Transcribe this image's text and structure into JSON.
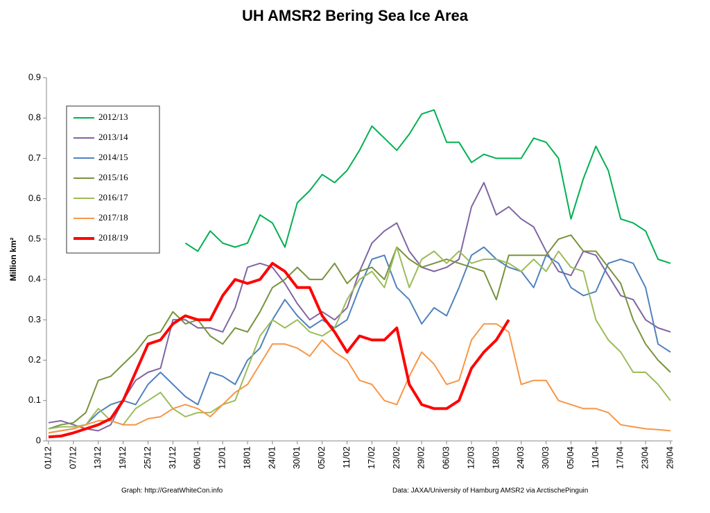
{
  "chart_data": {
    "type": "line",
    "title": "UH AMSR2 Bering Sea Ice Area",
    "y_label": "Million km²",
    "annotations": [
      "Graph: http://GreatWhiteCon.info",
      "Data: JAXA/University of Hamburg AMSR2  via  ArctischePinguin"
    ],
    "ylim": [
      0,
      0.9
    ],
    "yticks": [
      0,
      0.1,
      0.2,
      0.3,
      0.4,
      0.5,
      0.6,
      0.7,
      0.8,
      0.9
    ],
    "grid": false,
    "legend": "upper left",
    "categories": [
      "01/12",
      null,
      "07/12",
      null,
      "13/12",
      null,
      "19/12",
      null,
      "25/12",
      null,
      "31/12",
      null,
      "06/01",
      null,
      "12/01",
      null,
      "18/01",
      null,
      "24/01",
      null,
      "30/01",
      null,
      "05/02",
      null,
      "11/02",
      null,
      "17/02",
      null,
      "23/02",
      null,
      "29/02",
      null,
      "06/03",
      null,
      "12/03",
      null,
      "18/03",
      null,
      "24/03",
      null,
      "30/03",
      null,
      "05/04",
      null,
      "11/04",
      null,
      "17/04",
      null,
      "23/04",
      null,
      "29/04"
    ],
    "series": [
      {
        "name": "2012/13",
        "color": "#00b050",
        "width": 2,
        "values": [
          null,
          null,
          null,
          null,
          null,
          null,
          null,
          null,
          null,
          null,
          null,
          0.49,
          0.47,
          0.52,
          0.49,
          0.48,
          0.49,
          0.56,
          0.54,
          0.48,
          0.59,
          0.62,
          0.66,
          0.64,
          0.67,
          0.72,
          0.78,
          0.75,
          0.72,
          0.76,
          0.81,
          0.82,
          0.74,
          0.74,
          0.69,
          0.71,
          0.7,
          0.7,
          0.7,
          0.75,
          0.74,
          0.7,
          0.55,
          0.65,
          0.73,
          0.67,
          0.55,
          0.54,
          0.52,
          0.45,
          0.44
        ]
      },
      {
        "name": "2013/14",
        "color": "#8064a2",
        "width": 2,
        "values": [
          0.045,
          0.05,
          0.04,
          0.03,
          0.025,
          0.04,
          0.1,
          0.15,
          0.17,
          0.18,
          0.3,
          0.3,
          0.28,
          0.28,
          0.27,
          0.33,
          0.43,
          0.44,
          0.43,
          0.39,
          0.34,
          0.3,
          0.32,
          0.3,
          0.33,
          0.42,
          0.49,
          0.52,
          0.54,
          0.47,
          0.43,
          0.42,
          0.43,
          0.45,
          0.58,
          0.64,
          0.56,
          0.58,
          0.55,
          0.53,
          0.47,
          0.42,
          0.41,
          0.47,
          0.46,
          0.41,
          0.36,
          0.35,
          0.3,
          0.28,
          0.27
        ]
      },
      {
        "name": "2014/15",
        "color": "#4f81bd",
        "width": 2,
        "values": [
          0.02,
          0.025,
          0.03,
          0.04,
          0.07,
          0.09,
          0.1,
          0.09,
          0.14,
          0.17,
          0.14,
          0.11,
          0.09,
          0.17,
          0.16,
          0.14,
          0.2,
          0.23,
          0.3,
          0.35,
          0.31,
          0.28,
          0.3,
          0.28,
          0.3,
          0.38,
          0.45,
          0.46,
          0.38,
          0.35,
          0.29,
          0.33,
          0.31,
          0.38,
          0.46,
          0.48,
          0.45,
          0.43,
          0.42,
          0.38,
          0.46,
          0.44,
          0.38,
          0.36,
          0.37,
          0.44,
          0.45,
          0.44,
          0.38,
          0.24,
          0.22
        ]
      },
      {
        "name": "2015/16",
        "color": "#77933c",
        "width": 2,
        "values": [
          0.03,
          0.04,
          0.045,
          0.07,
          0.15,
          0.16,
          0.19,
          0.22,
          0.26,
          0.27,
          0.32,
          0.29,
          0.3,
          0.26,
          0.24,
          0.28,
          0.27,
          0.32,
          0.38,
          0.4,
          0.43,
          0.4,
          0.4,
          0.44,
          0.39,
          0.42,
          0.43,
          0.4,
          0.48,
          0.45,
          0.43,
          0.44,
          0.45,
          0.44,
          0.43,
          0.42,
          0.35,
          0.46,
          0.46,
          0.46,
          0.46,
          0.5,
          0.51,
          0.47,
          0.47,
          0.43,
          0.39,
          0.3,
          0.24,
          0.2,
          0.17
        ]
      },
      {
        "name": "2016/17",
        "color": "#9bbb59",
        "width": 2,
        "values": [
          0.03,
          0.035,
          0.035,
          0.04,
          0.08,
          0.05,
          0.04,
          0.08,
          0.1,
          0.12,
          0.08,
          0.06,
          0.07,
          0.07,
          0.09,
          0.1,
          0.18,
          0.26,
          0.3,
          0.28,
          0.3,
          0.27,
          0.26,
          0.28,
          0.35,
          0.4,
          0.42,
          0.38,
          0.48,
          0.38,
          0.45,
          0.47,
          0.44,
          0.47,
          0.44,
          0.45,
          0.45,
          0.44,
          0.42,
          0.45,
          0.42,
          0.47,
          0.43,
          0.42,
          0.3,
          0.25,
          0.22,
          0.17,
          0.17,
          0.14,
          0.1
        ]
      },
      {
        "name": "2017/18",
        "color": "#f79646",
        "width": 2,
        "values": [
          0.02,
          0.025,
          0.03,
          0.04,
          0.05,
          0.05,
          0.04,
          0.04,
          0.055,
          0.06,
          0.08,
          0.09,
          0.08,
          0.06,
          0.09,
          0.12,
          0.14,
          0.19,
          0.24,
          0.24,
          0.23,
          0.21,
          0.25,
          0.22,
          0.2,
          0.15,
          0.14,
          0.1,
          0.09,
          0.16,
          0.22,
          0.19,
          0.14,
          0.15,
          0.25,
          0.29,
          0.29,
          0.27,
          0.14,
          0.15,
          0.15,
          0.1,
          0.09,
          0.08,
          0.08,
          0.07,
          0.04,
          0.035,
          0.03,
          0.028,
          0.025
        ]
      },
      {
        "name": "2018/19",
        "color": "#ff0000",
        "width": 4,
        "values": [
          0.01,
          0.012,
          0.02,
          0.03,
          0.04,
          0.055,
          0.1,
          0.17,
          0.24,
          0.25,
          0.29,
          0.31,
          0.3,
          0.3,
          0.36,
          0.4,
          0.39,
          0.4,
          0.44,
          0.42,
          0.38,
          0.38,
          0.31,
          0.27,
          0.22,
          0.26,
          0.25,
          0.25,
          0.28,
          0.14,
          0.09,
          0.08,
          0.08,
          0.1,
          0.18,
          0.22,
          0.25,
          0.3,
          null,
          null,
          null,
          null,
          null,
          null,
          null,
          null,
          null,
          null,
          null,
          null,
          null
        ]
      }
    ]
  }
}
